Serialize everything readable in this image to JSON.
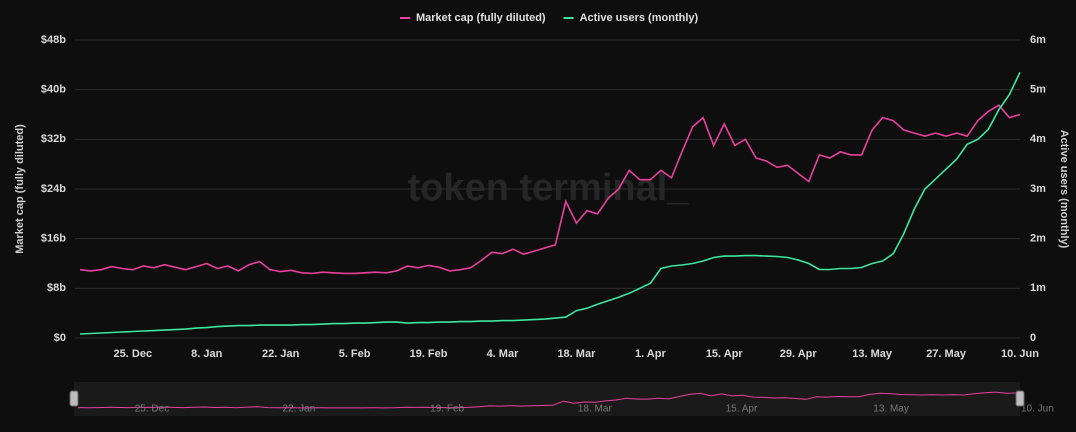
{
  "chart_data": {
    "type": "line",
    "watermark": "token terminal_",
    "y_label": "Market cap (fully diluted)",
    "y2_label": "Active users (monthly)",
    "categories": [
      null,
      null,
      null,
      null,
      null,
      "25. Dec",
      null,
      null,
      null,
      null,
      null,
      null,
      "8. Jan",
      null,
      null,
      null,
      null,
      null,
      null,
      "22. Jan",
      null,
      null,
      null,
      null,
      null,
      null,
      "5. Feb",
      null,
      null,
      null,
      null,
      null,
      null,
      "19. Feb",
      null,
      null,
      null,
      null,
      null,
      null,
      "4. Mar",
      null,
      null,
      null,
      null,
      null,
      null,
      "18. Mar",
      null,
      null,
      null,
      null,
      null,
      null,
      "1. Apr",
      null,
      null,
      null,
      null,
      null,
      null,
      "15. Apr",
      null,
      null,
      null,
      null,
      null,
      null,
      "29. Apr",
      null,
      null,
      null,
      null,
      null,
      null,
      "13. May",
      null,
      null,
      null,
      null,
      null,
      null,
      "27. May",
      null,
      null,
      null,
      null,
      null,
      null,
      "10. Jun"
    ],
    "series": [
      {
        "name": "Market cap (fully diluted)",
        "color": "#e8409f",
        "values": [
          11,
          10.8,
          11,
          11.5,
          11.2,
          11,
          11.6,
          11.3,
          11.8,
          11.4,
          11,
          11.5,
          12,
          11.2,
          11.6,
          10.8,
          11.8,
          12.3,
          11.0,
          10.7,
          10.9,
          10.5,
          10.4,
          10.6,
          10.5,
          10.4,
          10.4,
          10.5,
          10.6,
          10.5,
          10.8,
          11.6,
          11.3,
          11.7,
          11.4,
          10.8,
          11,
          11.3,
          12.5,
          13.8,
          13.6,
          14.3,
          13.5,
          14,
          14.5,
          15,
          22,
          18.5,
          20.5,
          20,
          22.5,
          24,
          27,
          25.5,
          25.5,
          27,
          25.8,
          30,
          34,
          35.5,
          31,
          34.5,
          31,
          32,
          29,
          28.5,
          27.5,
          27.8,
          26.5,
          25.2,
          29.5,
          29,
          30,
          29.5,
          29.5,
          33.5,
          35.5,
          35,
          33.5,
          33,
          32.5,
          33,
          32.5,
          33,
          32.5,
          35,
          36.5,
          37.5,
          35.5,
          36
        ]
      },
      {
        "name": "Active users (monthly)",
        "color": "#3ee6a6",
        "axis": "y2",
        "values": [
          0.08,
          0.09,
          0.1,
          0.11,
          0.12,
          0.13,
          0.14,
          0.15,
          0.16,
          0.17,
          0.18,
          0.2,
          0.21,
          0.23,
          0.24,
          0.25,
          0.25,
          0.26,
          0.26,
          0.26,
          0.26,
          0.27,
          0.27,
          0.28,
          0.29,
          0.29,
          0.3,
          0.3,
          0.31,
          0.32,
          0.32,
          0.3,
          0.31,
          0.31,
          0.32,
          0.32,
          0.33,
          0.33,
          0.34,
          0.34,
          0.35,
          0.35,
          0.36,
          0.37,
          0.38,
          0.4,
          0.42,
          0.55,
          0.6,
          0.68,
          0.75,
          0.82,
          0.9,
          1.0,
          1.1,
          1.4,
          1.45,
          1.47,
          1.5,
          1.55,
          1.62,
          1.65,
          1.65,
          1.66,
          1.66,
          1.65,
          1.64,
          1.62,
          1.57,
          1.5,
          1.38,
          1.38,
          1.4,
          1.4,
          1.42,
          1.5,
          1.55,
          1.7,
          2.1,
          2.6,
          3.0,
          3.2,
          3.4,
          3.6,
          3.9,
          4.0,
          4.2,
          4.6,
          4.9,
          5.35
        ]
      }
    ],
    "ylim": [
      0,
      48
    ],
    "yticks": [
      {
        "value": 0,
        "label": "$0"
      },
      {
        "value": 8,
        "label": "$8b"
      },
      {
        "value": 16,
        "label": "$16b"
      },
      {
        "value": 24,
        "label": "$24b"
      },
      {
        "value": 32,
        "label": "$32b"
      },
      {
        "value": 40,
        "label": "$40b"
      },
      {
        "value": 48,
        "label": "$48b"
      }
    ],
    "y2lim": [
      0,
      6
    ],
    "y2ticks": [
      0,
      {
        "value": 1,
        "label": "1m"
      },
      {
        "value": 2,
        "label": "2m"
      },
      {
        "value": 3,
        "label": "3m"
      },
      {
        "value": 4,
        "label": "4m"
      },
      {
        "value": 5,
        "label": "5m"
      },
      {
        "value": 6,
        "label": "6m"
      }
    ],
    "grid": true,
    "legend": "top"
  }
}
